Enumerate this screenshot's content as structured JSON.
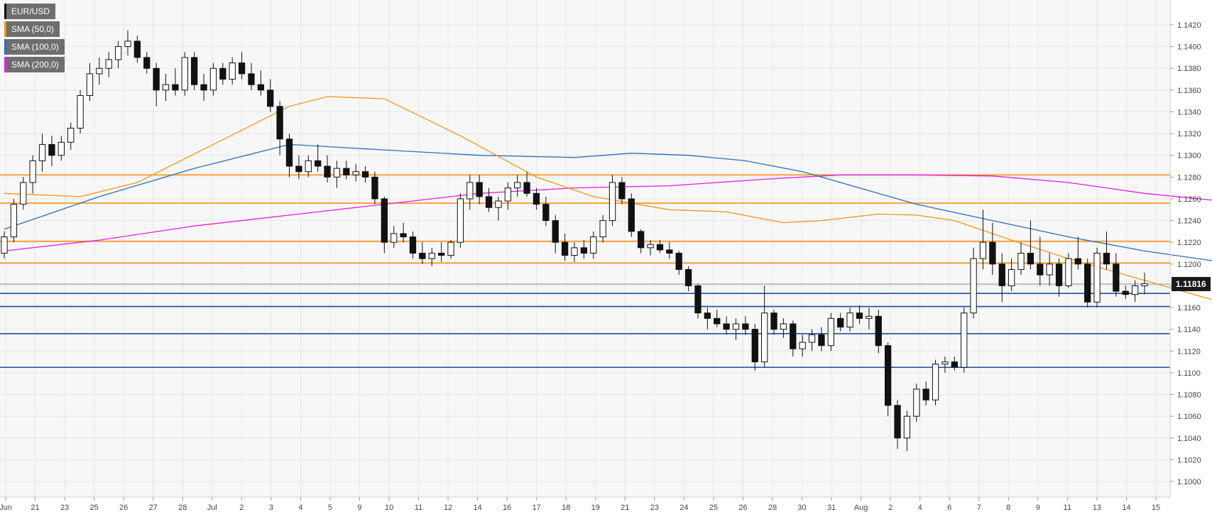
{
  "chart_data": {
    "type": "candlestick",
    "symbol": "EUR/USD",
    "ylim": [
      1.1,
      1.1425
    ],
    "y_ticks": [
      "1.1420",
      "1.1400",
      "1.1380",
      "1.1360",
      "1.1340",
      "1.1320",
      "1.1300",
      "1.1280",
      "1.1260",
      "1.1240",
      "1.1220",
      "1.1200",
      "1.1180",
      "1.1160",
      "1.1140",
      "1.1120",
      "1.1100",
      "1.1080",
      "1.1060",
      "1.1040",
      "1.1020",
      "1.1000"
    ],
    "x_ticks": [
      "Jun",
      "21",
      "23",
      "25",
      "26",
      "27",
      "28",
      "Jul",
      "2",
      "3",
      "4",
      "5",
      "9",
      "10",
      "11",
      "12",
      "14",
      "16",
      "17",
      "18",
      "19",
      "21",
      "23",
      "24",
      "25",
      "26",
      "28",
      "30",
      "31",
      "Aug",
      "2",
      "4",
      "6",
      "7",
      "8",
      "9",
      "11",
      "13",
      "14",
      "15"
    ],
    "current_price": "1.11816",
    "legend": [
      {
        "label": "EUR/USD",
        "color": "#111111"
      },
      {
        "label": "SMA (50,0)",
        "color": "#f7931a"
      },
      {
        "label": "SMA (100,0)",
        "color": "#2a6ebb"
      },
      {
        "label": "SMA (200,0)",
        "color": "#e51ce5"
      }
    ],
    "resistance_levels": [
      1.1282,
      1.1256,
      1.1221,
      1.1201
    ],
    "support_levels": [
      1.1173,
      1.1161,
      1.1136,
      1.1105
    ],
    "resistance_color": "#f7931a",
    "support_color": "#1f4fa0",
    "price_line": 1.11816,
    "candles": [
      [
        1.121,
        1.123,
        1.1205,
        1.1225
      ],
      [
        1.1225,
        1.126,
        1.122,
        1.1255
      ],
      [
        1.1255,
        1.128,
        1.125,
        1.1275
      ],
      [
        1.1275,
        1.13,
        1.1265,
        1.1295
      ],
      [
        1.1295,
        1.132,
        1.1285,
        1.131
      ],
      [
        1.131,
        1.1318,
        1.129,
        1.13
      ],
      [
        1.13,
        1.1318,
        1.1295,
        1.1312
      ],
      [
        1.1312,
        1.133,
        1.1305,
        1.1325
      ],
      [
        1.1325,
        1.136,
        1.132,
        1.1355
      ],
      [
        1.1355,
        1.1385,
        1.135,
        1.1375
      ],
      [
        1.1375,
        1.139,
        1.1365,
        1.138
      ],
      [
        1.138,
        1.1395,
        1.1372,
        1.1388
      ],
      [
        1.1388,
        1.1405,
        1.138,
        1.14
      ],
      [
        1.14,
        1.1415,
        1.1392,
        1.1405
      ],
      [
        1.1405,
        1.141,
        1.1385,
        1.139
      ],
      [
        1.139,
        1.1395,
        1.1375,
        1.138
      ],
      [
        1.138,
        1.1385,
        1.1345,
        1.136
      ],
      [
        1.136,
        1.1375,
        1.135,
        1.1365
      ],
      [
        1.1365,
        1.138,
        1.1355,
        1.136
      ],
      [
        1.136,
        1.1395,
        1.1355,
        1.139
      ],
      [
        1.139,
        1.1395,
        1.136,
        1.1365
      ],
      [
        1.1365,
        1.1375,
        1.135,
        1.136
      ],
      [
        1.136,
        1.1385,
        1.1355,
        1.138
      ],
      [
        1.138,
        1.1385,
        1.1365,
        1.137
      ],
      [
        1.137,
        1.139,
        1.1365,
        1.1385
      ],
      [
        1.1385,
        1.1395,
        1.137,
        1.1375
      ],
      [
        1.1375,
        1.1385,
        1.136,
        1.1365
      ],
      [
        1.1365,
        1.1378,
        1.1355,
        1.136
      ],
      [
        1.136,
        1.137,
        1.134,
        1.1345
      ],
      [
        1.1345,
        1.135,
        1.13,
        1.1315
      ],
      [
        1.1315,
        1.132,
        1.128,
        1.129
      ],
      [
        1.129,
        1.13,
        1.1278,
        1.1285
      ],
      [
        1.1285,
        1.13,
        1.128,
        1.1295
      ],
      [
        1.1295,
        1.131,
        1.1285,
        1.129
      ],
      [
        1.129,
        1.13,
        1.1275,
        1.128
      ],
      [
        1.128,
        1.1295,
        1.127,
        1.1288
      ],
      [
        1.1288,
        1.1295,
        1.1278,
        1.1282
      ],
      [
        1.1282,
        1.1292,
        1.1276,
        1.1285
      ],
      [
        1.1285,
        1.129,
        1.1275,
        1.128
      ],
      [
        1.128,
        1.1285,
        1.1255,
        1.126
      ],
      [
        1.126,
        1.1262,
        1.121,
        1.122
      ],
      [
        1.122,
        1.1235,
        1.1215,
        1.1228
      ],
      [
        1.1228,
        1.1238,
        1.122,
        1.1225
      ],
      [
        1.1225,
        1.123,
        1.1205,
        1.121
      ],
      [
        1.121,
        1.122,
        1.12,
        1.1205
      ],
      [
        1.1205,
        1.1215,
        1.1198,
        1.121
      ],
      [
        1.121,
        1.122,
        1.1202,
        1.1208
      ],
      [
        1.1208,
        1.1222,
        1.1205,
        1.122
      ],
      [
        1.122,
        1.1265,
        1.1215,
        1.126
      ],
      [
        1.126,
        1.1282,
        1.125,
        1.1275
      ],
      [
        1.1275,
        1.1282,
        1.1255,
        1.1262
      ],
      [
        1.1262,
        1.127,
        1.1248,
        1.1252
      ],
      [
        1.1252,
        1.1262,
        1.124,
        1.1258
      ],
      [
        1.1258,
        1.1275,
        1.125,
        1.127
      ],
      [
        1.127,
        1.1282,
        1.1262,
        1.1275
      ],
      [
        1.1275,
        1.1285,
        1.1262,
        1.1265
      ],
      [
        1.1265,
        1.127,
        1.125,
        1.1255
      ],
      [
        1.1255,
        1.1262,
        1.1235,
        1.124
      ],
      [
        1.124,
        1.1245,
        1.121,
        1.122
      ],
      [
        1.122,
        1.1228,
        1.1203,
        1.1208
      ],
      [
        1.1208,
        1.122,
        1.1202,
        1.1215
      ],
      [
        1.1215,
        1.1222,
        1.1205,
        1.121
      ],
      [
        1.121,
        1.123,
        1.1205,
        1.1225
      ],
      [
        1.1225,
        1.1245,
        1.122,
        1.124
      ],
      [
        1.124,
        1.1282,
        1.1235,
        1.1275
      ],
      [
        1.1275,
        1.128,
        1.1255,
        1.126
      ],
      [
        1.126,
        1.1265,
        1.1225,
        1.123
      ],
      [
        1.123,
        1.1232,
        1.121,
        1.1215
      ],
      [
        1.1215,
        1.1222,
        1.1208,
        1.1218
      ],
      [
        1.1218,
        1.1222,
        1.121,
        1.1213
      ],
      [
        1.1213,
        1.122,
        1.1205,
        1.121
      ],
      [
        1.121,
        1.1212,
        1.119,
        1.1195
      ],
      [
        1.1195,
        1.1198,
        1.1175,
        1.118
      ],
      [
        1.118,
        1.1182,
        1.115,
        1.1155
      ],
      [
        1.1155,
        1.116,
        1.114,
        1.115
      ],
      [
        1.115,
        1.1158,
        1.1142,
        1.1145
      ],
      [
        1.1145,
        1.1152,
        1.1135,
        1.114
      ],
      [
        1.114,
        1.115,
        1.113,
        1.1145
      ],
      [
        1.1145,
        1.1152,
        1.1135,
        1.114
      ],
      [
        1.114,
        1.1145,
        1.1102,
        1.111
      ],
      [
        1.111,
        1.118,
        1.1105,
        1.1155
      ],
      [
        1.1155,
        1.1158,
        1.1135,
        1.114
      ],
      [
        1.114,
        1.115,
        1.1132,
        1.1145
      ],
      [
        1.1145,
        1.1148,
        1.1115,
        1.1122
      ],
      [
        1.1122,
        1.1135,
        1.1115,
        1.1128
      ],
      [
        1.1128,
        1.114,
        1.112,
        1.1135
      ],
      [
        1.1135,
        1.1142,
        1.112,
        1.1125
      ],
      [
        1.1125,
        1.1155,
        1.112,
        1.115
      ],
      [
        1.115,
        1.1155,
        1.1138,
        1.1142
      ],
      [
        1.1142,
        1.116,
        1.1138,
        1.1155
      ],
      [
        1.1155,
        1.1162,
        1.1145,
        1.115
      ],
      [
        1.115,
        1.116,
        1.114,
        1.1152
      ],
      [
        1.1152,
        1.1158,
        1.1118,
        1.1125
      ],
      [
        1.1125,
        1.1128,
        1.106,
        1.107
      ],
      [
        1.107,
        1.1075,
        1.103,
        1.104
      ],
      [
        1.104,
        1.1065,
        1.1028,
        1.106
      ],
      [
        1.106,
        1.109,
        1.1055,
        1.1085
      ],
      [
        1.1085,
        1.1092,
        1.107,
        1.1075
      ],
      [
        1.1075,
        1.1112,
        1.107,
        1.1108
      ],
      [
        1.1108,
        1.1115,
        1.11,
        1.111
      ],
      [
        1.111,
        1.1115,
        1.1102,
        1.1105
      ],
      [
        1.1105,
        1.116,
        1.11,
        1.1155
      ],
      [
        1.1155,
        1.1215,
        1.115,
        1.1205
      ],
      [
        1.1205,
        1.125,
        1.1195,
        1.122
      ],
      [
        1.122,
        1.1238,
        1.119,
        1.12
      ],
      [
        1.12,
        1.121,
        1.1165,
        1.118
      ],
      [
        1.118,
        1.1205,
        1.1175,
        1.1195
      ],
      [
        1.1195,
        1.122,
        1.119,
        1.121
      ],
      [
        1.121,
        1.124,
        1.1195,
        1.12
      ],
      [
        1.12,
        1.1225,
        1.118,
        1.119
      ],
      [
        1.119,
        1.121,
        1.118,
        1.12
      ],
      [
        1.12,
        1.1205,
        1.117,
        1.118
      ],
      [
        1.118,
        1.121,
        1.1178,
        1.1205
      ],
      [
        1.1205,
        1.1225,
        1.1195,
        1.12
      ],
      [
        1.12,
        1.1205,
        1.116,
        1.1165
      ],
      [
        1.1165,
        1.1215,
        1.116,
        1.121
      ],
      [
        1.121,
        1.123,
        1.1195,
        1.12
      ],
      [
        1.12,
        1.121,
        1.117,
        1.1175
      ],
      [
        1.1175,
        1.118,
        1.1168,
        1.1172
      ],
      [
        1.1172,
        1.1185,
        1.1165,
        1.118
      ],
      [
        1.118,
        1.1192,
        1.1172,
        1.1182
      ]
    ],
    "sma50": [
      [
        0,
        1.1265
      ],
      [
        8,
        1.1262
      ],
      [
        14,
        1.1275
      ],
      [
        22,
        1.131
      ],
      [
        30,
        1.1345
      ],
      [
        34,
        1.1354
      ],
      [
        40,
        1.1352
      ],
      [
        48,
        1.1318
      ],
      [
        56,
        1.128
      ],
      [
        62,
        1.1262
      ],
      [
        70,
        1.125
      ],
      [
        76,
        1.1248
      ],
      [
        82,
        1.1238
      ],
      [
        86,
        1.124
      ],
      [
        92,
        1.1246
      ],
      [
        96,
        1.1245
      ],
      [
        100,
        1.124
      ],
      [
        106,
        1.1222
      ],
      [
        112,
        1.1205
      ],
      [
        118,
        1.119
      ],
      [
        124,
        1.1175
      ],
      [
        130,
        1.116
      ],
      [
        136,
        1.114
      ],
      [
        142,
        1.1128
      ],
      [
        146,
        1.1122
      ],
      [
        150,
        1.1125
      ],
      [
        156,
        1.1138
      ],
      [
        162,
        1.115
      ],
      [
        168,
        1.1162
      ],
      [
        172,
        1.117
      ],
      [
        176,
        1.1178
      ],
      [
        180,
        1.1188
      ],
      [
        184,
        1.1192
      ],
      [
        187,
        1.1188
      ]
    ],
    "sma100": [
      [
        0,
        1.1232
      ],
      [
        10,
        1.1262
      ],
      [
        20,
        1.1288
      ],
      [
        30,
        1.131
      ],
      [
        40,
        1.1305
      ],
      [
        50,
        1.13
      ],
      [
        60,
        1.1298
      ],
      [
        66,
        1.1302
      ],
      [
        72,
        1.13
      ],
      [
        78,
        1.1295
      ],
      [
        84,
        1.1285
      ],
      [
        90,
        1.127
      ],
      [
        96,
        1.1255
      ],
      [
        104,
        1.124
      ],
      [
        112,
        1.1225
      ],
      [
        120,
        1.1212
      ],
      [
        128,
        1.1202
      ],
      [
        136,
        1.1195
      ],
      [
        144,
        1.1185
      ],
      [
        152,
        1.1175
      ],
      [
        160,
        1.1168
      ],
      [
        170,
        1.1163
      ],
      [
        178,
        1.1158
      ],
      [
        187,
        1.1156
      ]
    ],
    "sma200": [
      [
        0,
        1.1212
      ],
      [
        10,
        1.1222
      ],
      [
        20,
        1.1235
      ],
      [
        30,
        1.1245
      ],
      [
        40,
        1.1255
      ],
      [
        50,
        1.1265
      ],
      [
        60,
        1.127
      ],
      [
        70,
        1.1272
      ],
      [
        80,
        1.1278
      ],
      [
        88,
        1.1282
      ],
      [
        96,
        1.1282
      ],
      [
        104,
        1.1281
      ],
      [
        112,
        1.1275
      ],
      [
        120,
        1.1265
      ],
      [
        128,
        1.1258
      ],
      [
        136,
        1.1248
      ],
      [
        144,
        1.124
      ],
      [
        152,
        1.1232
      ],
      [
        160,
        1.1225
      ],
      [
        168,
        1.1218
      ],
      [
        176,
        1.121
      ],
      [
        184,
        1.1203
      ],
      [
        187,
        1.1201
      ]
    ]
  }
}
